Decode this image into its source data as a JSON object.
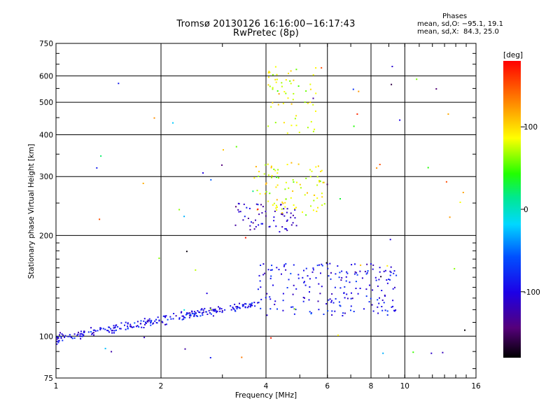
{
  "chart_data": {
    "type": "scatter",
    "title": "Tromsø 20130126 16:16:00−16:17:43",
    "subtitle": "RwPretec (8p)",
    "xlabel": "Frequency [MHz]",
    "ylabel": "Stationary phase Virtual Height [km]",
    "x_scale": "log",
    "y_scale": "log",
    "xlim": [
      1,
      16
    ],
    "ylim": [
      75,
      750
    ],
    "x_ticks": [
      1,
      2,
      4,
      6,
      8,
      10,
      16
    ],
    "y_ticks": [
      75,
      100,
      200,
      300,
      400,
      500,
      600,
      750
    ],
    "grid": true,
    "colorbar": {
      "label": "[deg]",
      "range": [
        -180,
        180
      ],
      "ticks": [
        100,
        0,
        -100
      ],
      "colormap": "rainbow (black-purple-blue-cyan-green-yellow-orange-red)"
    },
    "annotation": {
      "heading": "Phases",
      "line1": "mean, sd,O: −95.1, 19.1",
      "line2": "mean, sd,X:  84.3, 25.0"
    },
    "clusters": [
      {
        "trace": "lower O-trace",
        "x_range": [
          1.0,
          3.8
        ],
        "height_range": [
          98,
          125
        ],
        "phase_mean": -95
      },
      {
        "trace": "lower trace 4-10 MHz",
        "x_range": [
          3.8,
          9.5
        ],
        "height_range": [
          115,
          165
        ],
        "phase_mean": -95
      },
      {
        "trace": "F-layer O-trace",
        "x_range": [
          3.2,
          4.9
        ],
        "height_range": [
          205,
          250
        ],
        "phase_mean": -110
      },
      {
        "trace": "F-layer X-trace",
        "x_range": [
          3.7,
          5.9
        ],
        "height_range": [
          230,
          330
        ],
        "phase_mean": 84
      },
      {
        "trace": "upper trace",
        "x_range": [
          4.0,
          5.6
        ],
        "height_range": [
          400,
          650
        ],
        "phase_mean": 84
      }
    ]
  }
}
